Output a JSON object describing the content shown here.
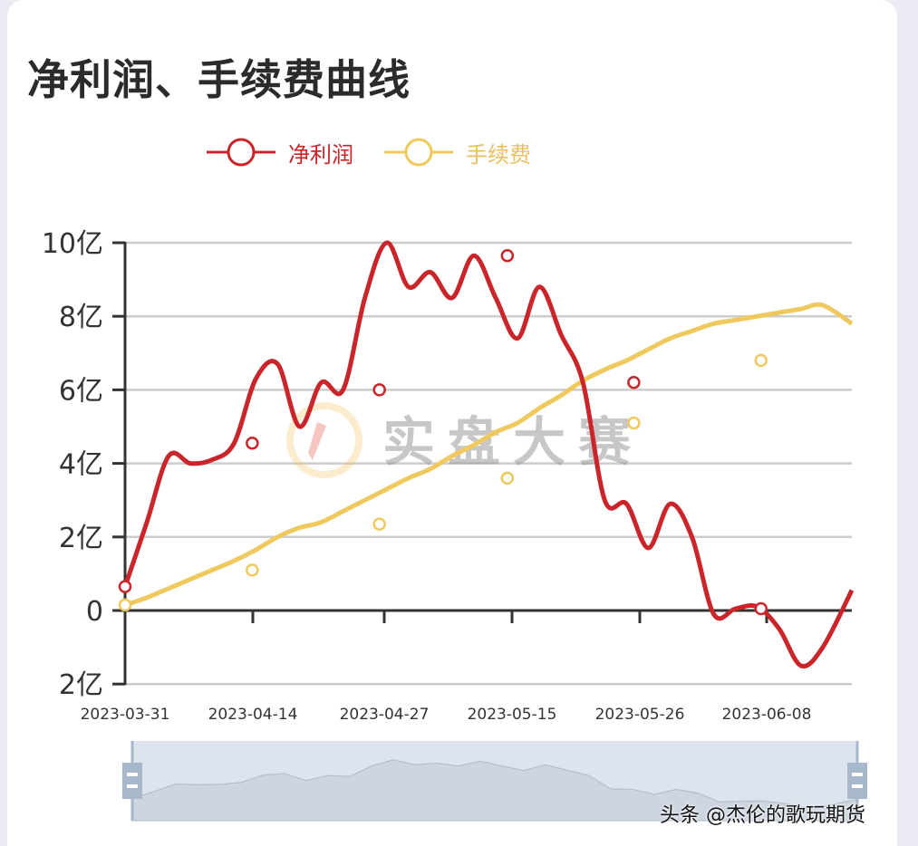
{
  "title": "净利润、手续费曲线",
  "legend": [
    {
      "label": "净利润",
      "color": "#c9252b"
    },
    {
      "label": "手续费",
      "color": "#f0c95e"
    }
  ],
  "watermark_logo_text": "实盘大赛",
  "footer_watermark": "头条 @杰伦的歌玩期货",
  "chart_data": {
    "type": "line",
    "title": "净利润、手续费曲线",
    "xlabel": "",
    "ylabel": "",
    "y_unit": "亿",
    "ylim": [
      -2,
      10
    ],
    "y_ticks": [
      10,
      8,
      6,
      4,
      2,
      0,
      -2
    ],
    "y_tick_labels": [
      "10亿",
      "8亿",
      "6亿",
      "4亿",
      "2亿",
      "0",
      "2亿"
    ],
    "x_tick_labels": [
      "2023-03-31",
      "2023-04-14",
      "2023-04-27",
      "2023-05-15",
      "2023-05-26",
      "2023-06-08"
    ],
    "grid": true,
    "legend_position": "top",
    "x_pos": [
      0,
      0.03,
      0.06,
      0.09,
      0.12,
      0.15,
      0.18,
      0.21,
      0.24,
      0.27,
      0.3,
      0.33,
      0.36,
      0.39,
      0.42,
      0.45,
      0.48,
      0.51,
      0.54,
      0.57,
      0.6,
      0.63,
      0.66,
      0.69,
      0.72,
      0.75,
      0.78,
      0.81,
      0.84,
      0.87,
      0.9,
      0.93,
      0.96,
      1.0
    ],
    "series": [
      {
        "name": "净利润",
        "color": "#c9252b",
        "values": [
          0.65,
          2.4,
          4.2,
          4.0,
          4.1,
          4.55,
          6.3,
          6.7,
          5.0,
          6.2,
          6.0,
          8.5,
          10.0,
          8.8,
          9.2,
          8.5,
          9.65,
          8.5,
          7.4,
          8.8,
          7.5,
          6.2,
          3.0,
          2.9,
          1.7,
          2.9,
          2.0,
          -0.1,
          0.05,
          0.1,
          -0.5,
          -1.5,
          -1.0,
          0.55
        ]
      },
      {
        "name": "手续费",
        "color": "#f0c95e",
        "values": [
          0.15,
          0.35,
          0.6,
          0.85,
          1.1,
          1.35,
          1.65,
          2.0,
          2.25,
          2.4,
          2.7,
          3.0,
          3.3,
          3.6,
          3.85,
          4.2,
          4.5,
          4.85,
          5.1,
          5.5,
          5.85,
          6.25,
          6.55,
          6.8,
          7.1,
          7.4,
          7.6,
          7.8,
          7.9,
          8.0,
          8.1,
          8.2,
          8.3,
          7.8
        ]
      }
    ],
    "markers": {
      "净利润": [
        [
          0,
          0.65
        ],
        [
          0.175,
          4.55
        ],
        [
          0.35,
          6.0
        ],
        [
          0.526,
          9.65
        ],
        [
          0.7,
          6.2
        ],
        [
          0.875,
          0.05
        ]
      ],
      "手续费": [
        [
          0,
          0.15
        ],
        [
          0.175,
          1.1
        ],
        [
          0.35,
          2.35
        ],
        [
          0.526,
          3.6
        ],
        [
          0.7,
          5.1
        ],
        [
          0.875,
          6.8
        ]
      ]
    },
    "dataZoom": {
      "start": 0,
      "end": 100
    }
  }
}
